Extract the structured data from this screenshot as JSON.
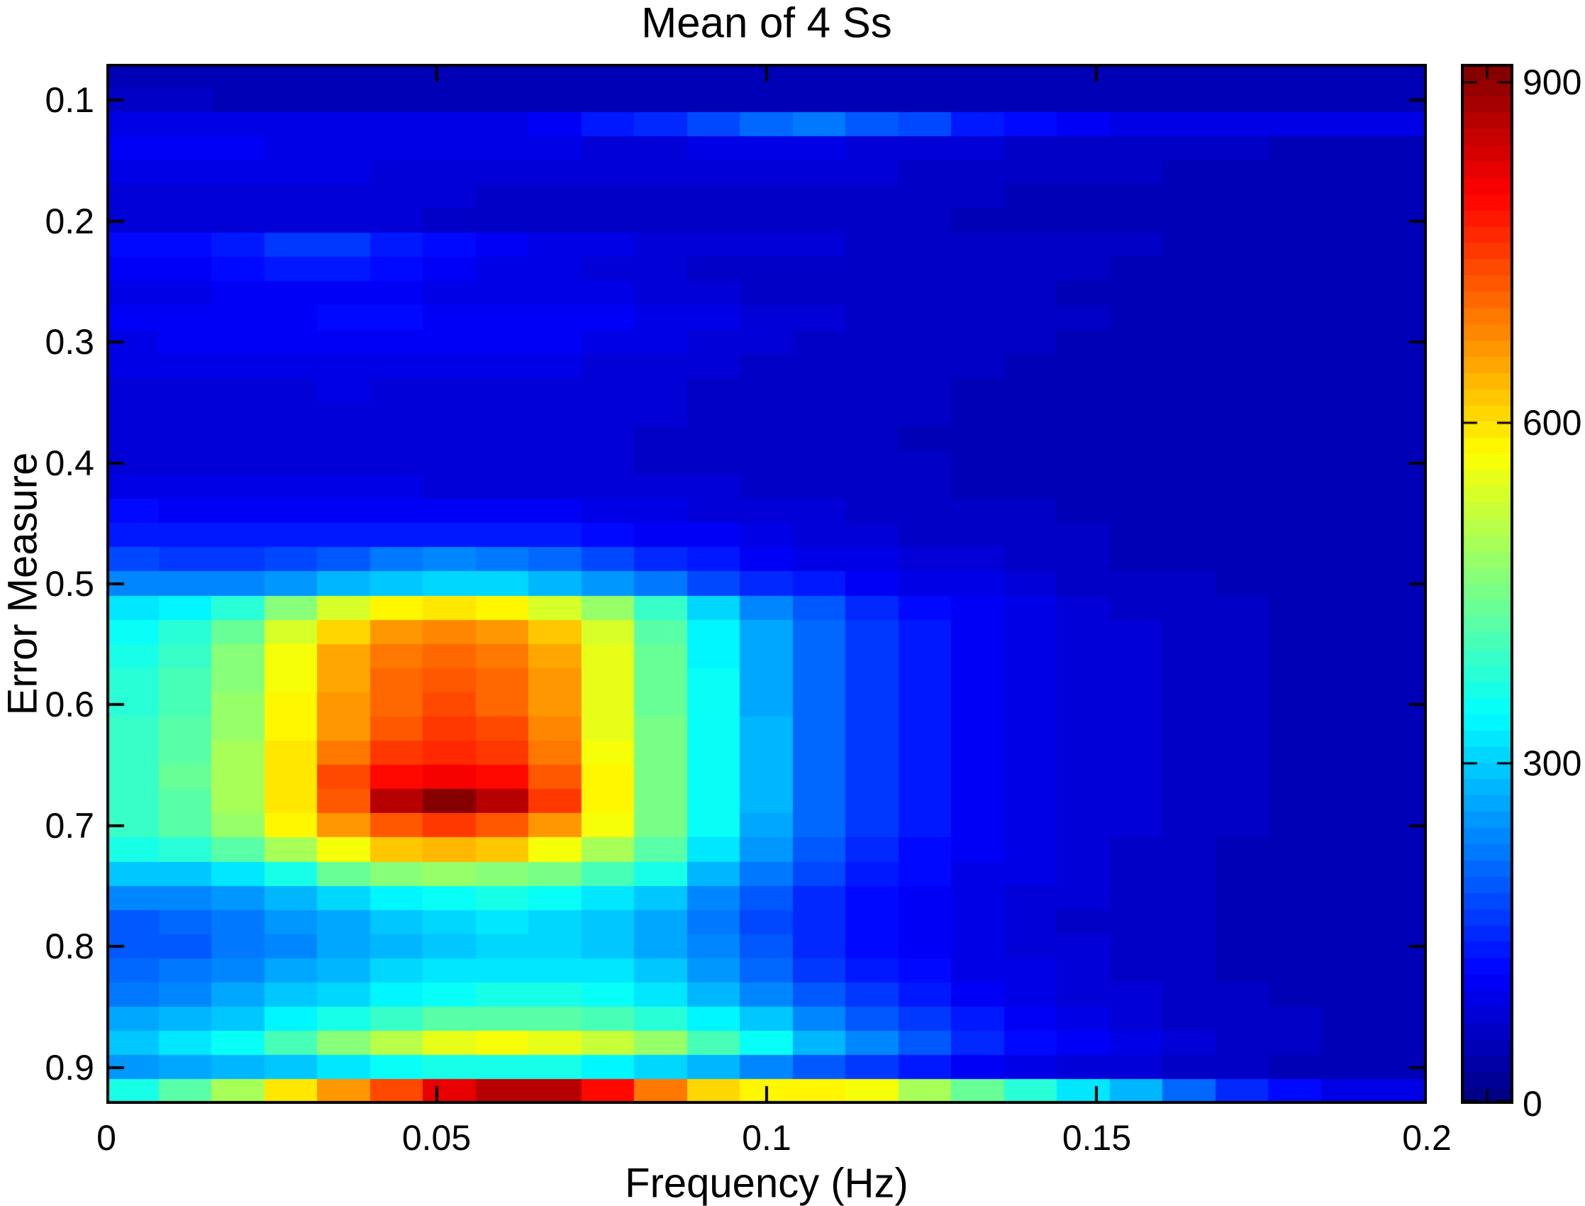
{
  "chart_data": {
    "type": "heatmap",
    "title": "Mean of 4 Ss",
    "xlabel": "Frequency (Hz)",
    "ylabel": "Error Measure",
    "colormap": "jet",
    "grid": false,
    "x_axis": {
      "range": [
        0,
        0.2
      ],
      "ticks": [
        {
          "label": "0",
          "value": 0
        },
        {
          "label": "0.05",
          "value": 0.05
        },
        {
          "label": "0.1",
          "value": 0.1
        },
        {
          "label": "0.15",
          "value": 0.15
        },
        {
          "label": "0.2",
          "value": 0.2
        }
      ]
    },
    "y_axis": {
      "range": [
        0.07,
        0.93
      ],
      "direction": "down",
      "ticks": [
        {
          "label": "0.1",
          "value": 0.1
        },
        {
          "label": "0.2",
          "value": 0.2
        },
        {
          "label": "0.3",
          "value": 0.3
        },
        {
          "label": "0.4",
          "value": 0.4
        },
        {
          "label": "0.5",
          "value": 0.5
        },
        {
          "label": "0.6",
          "value": 0.6
        },
        {
          "label": "0.7",
          "value": 0.7
        },
        {
          "label": "0.8",
          "value": 0.8
        },
        {
          "label": "0.9",
          "value": 0.9
        }
      ]
    },
    "colorbar": {
      "vmin": 0,
      "vmax": 916,
      "ticks": [
        {
          "label": "0",
          "value": 0
        },
        {
          "label": "300",
          "value": 300
        },
        {
          "label": "600",
          "value": 600
        },
        {
          "label": "900",
          "value": 900
        }
      ]
    },
    "x_bin_centers": [
      0.004,
      0.012,
      0.02,
      0.028,
      0.036,
      0.044,
      0.052,
      0.06,
      0.068,
      0.076,
      0.084,
      0.092,
      0.1,
      0.108,
      0.116,
      0.124,
      0.132,
      0.14,
      0.148,
      0.156,
      0.164,
      0.172,
      0.18,
      0.188,
      0.196
    ],
    "y_bin_centers": [
      0.08,
      0.1,
      0.12,
      0.14,
      0.16,
      0.18,
      0.2,
      0.22,
      0.24,
      0.26,
      0.28,
      0.3,
      0.32,
      0.34,
      0.36,
      0.38,
      0.4,
      0.42,
      0.44,
      0.46,
      0.48,
      0.5,
      0.52,
      0.54,
      0.56,
      0.58,
      0.6,
      0.62,
      0.64,
      0.66,
      0.68,
      0.7,
      0.72,
      0.74,
      0.76,
      0.78,
      0.8,
      0.82,
      0.84,
      0.86,
      0.88,
      0.9,
      0.92
    ],
    "values": [
      [
        55,
        55,
        55,
        55,
        55,
        55,
        55,
        55,
        55,
        55,
        55,
        52,
        50,
        50,
        50,
        50,
        50,
        50,
        48,
        48,
        48,
        48,
        48,
        48,
        48
      ],
      [
        58,
        58,
        56,
        55,
        55,
        55,
        55,
        55,
        55,
        55,
        55,
        52,
        50,
        50,
        50,
        50,
        50,
        50,
        48,
        48,
        48,
        48,
        48,
        48,
        48
      ],
      [
        95,
        95,
        92,
        90,
        90,
        92,
        95,
        100,
        112,
        132,
        152,
        178,
        208,
        215,
        196,
        176,
        142,
        116,
        106,
        100,
        95,
        92,
        90,
        88,
        88
      ],
      [
        110,
        108,
        105,
        100,
        96,
        92,
        90,
        88,
        86,
        84,
        84,
        86,
        88,
        86,
        82,
        78,
        72,
        68,
        64,
        62,
        60,
        58,
        56,
        55,
        55
      ],
      [
        100,
        98,
        95,
        90,
        88,
        85,
        82,
        80,
        78,
        76,
        74,
        74,
        76,
        75,
        72,
        68,
        65,
        62,
        60,
        58,
        56,
        55,
        54,
        53,
        52
      ],
      [
        85,
        83,
        80,
        78,
        76,
        74,
        72,
        70,
        68,
        67,
        66,
        65,
        64,
        63,
        62,
        60,
        58,
        56,
        55,
        54,
        52,
        51,
        50,
        50,
        50
      ],
      [
        80,
        78,
        76,
        74,
        73,
        72,
        70,
        68,
        67,
        66,
        65,
        64,
        63,
        62,
        60,
        58,
        57,
        55,
        54,
        52,
        51,
        50,
        49,
        49,
        48
      ],
      [
        115,
        120,
        135,
        160,
        158,
        140,
        120,
        110,
        100,
        92,
        85,
        80,
        75,
        72,
        70,
        68,
        65,
        62,
        60,
        58,
        55,
        53,
        52,
        50,
        50
      ],
      [
        105,
        110,
        120,
        133,
        132,
        118,
        105,
        95,
        88,
        82,
        76,
        70,
        64,
        60,
        58,
        60,
        62,
        60,
        58,
        56,
        54,
        52,
        50,
        50,
        48
      ],
      [
        100,
        100,
        102,
        105,
        105,
        102,
        100,
        98,
        95,
        90,
        85,
        75,
        68,
        66,
        64,
        62,
        60,
        58,
        56,
        55,
        53,
        52,
        50,
        50,
        48
      ],
      [
        105,
        106,
        108,
        112,
        115,
        115,
        112,
        110,
        108,
        104,
        98,
        88,
        78,
        72,
        68,
        65,
        62,
        60,
        58,
        56,
        54,
        52,
        51,
        50,
        49
      ],
      [
        100,
        102,
        104,
        108,
        110,
        110,
        108,
        106,
        104,
        100,
        95,
        85,
        76,
        70,
        66,
        63,
        61,
        59,
        57,
        55,
        53,
        52,
        50,
        50,
        48
      ],
      [
        88,
        90,
        92,
        94,
        95,
        94,
        92,
        90,
        88,
        85,
        80,
        74,
        70,
        66,
        63,
        60,
        58,
        57,
        55,
        54,
        52,
        51,
        50,
        49,
        48
      ],
      [
        80,
        82,
        84,
        85,
        86,
        85,
        84,
        82,
        80,
        78,
        75,
        71,
        68,
        64,
        61,
        59,
        57,
        55,
        54,
        53,
        51,
        50,
        49,
        48,
        47
      ],
      [
        75,
        76,
        78,
        79,
        80,
        80,
        79,
        78,
        76,
        74,
        72,
        69,
        66,
        63,
        60,
        58,
        56,
        54,
        53,
        52,
        50,
        49,
        48,
        47,
        46
      ],
      [
        73,
        74,
        75,
        76,
        77,
        77,
        76,
        75,
        74,
        72,
        70,
        67,
        64,
        62,
        59,
        57,
        55,
        53,
        52,
        51,
        49,
        48,
        47,
        46,
        46
      ],
      [
        85,
        84,
        82,
        80,
        79,
        78,
        77,
        76,
        74,
        72,
        70,
        67,
        65,
        62,
        60,
        58,
        56,
        54,
        52,
        51,
        49,
        48,
        47,
        46,
        45
      ],
      [
        95,
        92,
        90,
        88,
        87,
        86,
        85,
        84,
        82,
        79,
        76,
        72,
        68,
        65,
        62,
        59,
        57,
        55,
        53,
        51,
        50,
        48,
        47,
        46,
        45
      ],
      [
        115,
        112,
        110,
        108,
        108,
        108,
        107,
        105,
        102,
        97,
        91,
        84,
        78,
        72,
        68,
        64,
        61,
        58,
        55,
        53,
        51,
        49,
        48,
        47,
        46
      ],
      [
        140,
        135,
        132,
        132,
        134,
        136,
        137,
        136,
        132,
        124,
        114,
        103,
        93,
        84,
        77,
        71,
        66,
        62,
        58,
        55,
        53,
        51,
        49,
        48,
        46
      ],
      [
        175,
        168,
        168,
        180,
        200,
        220,
        230,
        225,
        205,
        180,
        152,
        130,
        112,
        99,
        88,
        79,
        72,
        66,
        61,
        57,
        54,
        52,
        50,
        48,
        47
      ],
      [
        240,
        235,
        238,
        255,
        280,
        300,
        310,
        305,
        285,
        255,
        220,
        185,
        155,
        130,
        112,
        98,
        88,
        78,
        70,
        64,
        59,
        56,
        53,
        50,
        48
      ],
      [
        320,
        340,
        380,
        470,
        540,
        580,
        590,
        580,
        540,
        480,
        400,
        310,
        240,
        190,
        152,
        125,
        105,
        90,
        80,
        71,
        64,
        59,
        55,
        51,
        49
      ],
      [
        350,
        380,
        430,
        530,
        610,
        660,
        680,
        665,
        620,
        530,
        420,
        330,
        262,
        204,
        162,
        132,
        110,
        94,
        82,
        73,
        66,
        60,
        56,
        52,
        49
      ],
      [
        370,
        400,
        460,
        560,
        645,
        695,
        715,
        700,
        650,
        545,
        435,
        340,
        268,
        208,
        165,
        134,
        112,
        95,
        83,
        74,
        66,
        60,
        56,
        52,
        49
      ],
      [
        380,
        410,
        470,
        570,
        655,
        705,
        725,
        710,
        660,
        550,
        440,
        345,
        270,
        209,
        166,
        135,
        112,
        95,
        83,
        74,
        66,
        60,
        56,
        52,
        49
      ],
      [
        385,
        415,
        475,
        575,
        660,
        710,
        730,
        715,
        665,
        552,
        442,
        348,
        270,
        210,
        166,
        135,
        112,
        95,
        83,
        74,
        66,
        60,
        55,
        52,
        49
      ],
      [
        390,
        420,
        480,
        580,
        668,
        725,
        748,
        730,
        675,
        556,
        446,
        350,
        272,
        210,
        166,
        135,
        112,
        95,
        83,
        74,
        66,
        60,
        55,
        52,
        49
      ],
      [
        395,
        425,
        488,
        590,
        700,
        745,
        760,
        745,
        690,
        565,
        450,
        352,
        275,
        212,
        167,
        135,
        112,
        95,
        83,
        74,
        66,
        60,
        55,
        52,
        49
      ],
      [
        400,
        430,
        492,
        600,
        730,
        800,
        815,
        800,
        720,
        575,
        455,
        355,
        277,
        213,
        168,
        136,
        112,
        95,
        83,
        74,
        66,
        60,
        55,
        52,
        49
      ],
      [
        398,
        428,
        490,
        598,
        720,
        865,
        915,
        860,
        745,
        580,
        458,
        356,
        277,
        213,
        168,
        136,
        112,
        95,
        83,
        74,
        66,
        60,
        55,
        52,
        49
      ],
      [
        390,
        420,
        480,
        575,
        660,
        720,
        750,
        720,
        660,
        560,
        445,
        350,
        268,
        208,
        164,
        133,
        110,
        93,
        81,
        72,
        64,
        59,
        54,
        51,
        48
      ],
      [
        360,
        380,
        420,
        490,
        560,
        620,
        640,
        620,
        560,
        490,
        420,
        325,
        248,
        193,
        154,
        126,
        105,
        89,
        78,
        69,
        62,
        57,
        53,
        50,
        48
      ],
      [
        290,
        300,
        320,
        365,
        440,
        460,
        480,
        470,
        450,
        415,
        360,
        285,
        222,
        176,
        142,
        118,
        100,
        86,
        76,
        68,
        61,
        56,
        52,
        50,
        47
      ],
      [
        230,
        238,
        252,
        278,
        305,
        330,
        350,
        358,
        350,
        328,
        292,
        240,
        192,
        156,
        128,
        108,
        93,
        81,
        72,
        65,
        59,
        55,
        51,
        49,
        47
      ],
      [
        200,
        208,
        222,
        245,
        268,
        288,
        305,
        315,
        312,
        296,
        268,
        225,
        183,
        150,
        124,
        105,
        90,
        79,
        71,
        64,
        58,
        54,
        51,
        48,
        46
      ],
      [
        190,
        200,
        215,
        240,
        262,
        282,
        298,
        308,
        308,
        296,
        270,
        230,
        188,
        154,
        127,
        107,
        92,
        81,
        72,
        65,
        59,
        55,
        51,
        49,
        46
      ],
      [
        205,
        215,
        232,
        258,
        282,
        302,
        318,
        328,
        328,
        316,
        292,
        252,
        208,
        170,
        140,
        117,
        99,
        86,
        76,
        68,
        61,
        56,
        52,
        49,
        47
      ],
      [
        225,
        238,
        258,
        288,
        314,
        336,
        352,
        362,
        362,
        350,
        326,
        286,
        240,
        197,
        161,
        133,
        111,
        95,
        83,
        73,
        65,
        59,
        54,
        51,
        48
      ],
      [
        260,
        275,
        300,
        338,
        370,
        398,
        418,
        428,
        426,
        412,
        384,
        340,
        288,
        238,
        194,
        158,
        130,
        109,
        93,
        81,
        71,
        64,
        58,
        53,
        49
      ],
      [
        300,
        320,
        355,
        410,
        465,
        515,
        550,
        565,
        555,
        525,
        478,
        415,
        348,
        286,
        232,
        188,
        152,
        125,
        104,
        89,
        77,
        68,
        61,
        56,
        51
      ],
      [
        250,
        260,
        275,
        300,
        325,
        345,
        360,
        365,
        358,
        340,
        310,
        272,
        230,
        192,
        159,
        132,
        110,
        94,
        81,
        72,
        64,
        58,
        54,
        50,
        47
      ],
      [
        360,
        420,
        500,
        590,
        670,
        740,
        820,
        870,
        860,
        800,
        700,
        610,
        580,
        575,
        565,
        500,
        440,
        380,
        320,
        280,
        210,
        150,
        120,
        100,
        90
      ]
    ]
  }
}
